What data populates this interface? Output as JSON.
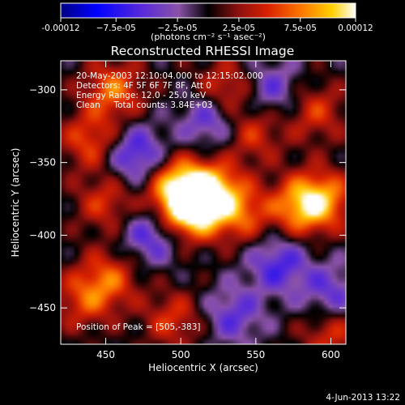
{
  "chart_data": {
    "type": "heatmap",
    "title": "Reconstructed RHESSI Image",
    "xlabel": "Heliocentric X (arcsec)",
    "ylabel": "Heliocentric Y (arcsec)",
    "xlim": [
      420,
      610
    ],
    "ylim": [
      -475,
      -280
    ],
    "x_ticks": [
      450,
      500,
      550,
      600
    ],
    "y_ticks": [
      -300,
      -350,
      -400,
      -450
    ],
    "x_tick_labels": [
      "450",
      "500",
      "550",
      "600"
    ],
    "y_tick_labels": [
      "−300",
      "−350",
      "−400",
      "−450"
    ],
    "colorbar": {
      "min": -0.00012,
      "max": 0.00012,
      "tick_labels": [
        "-0.00012",
        "−7.5e-05",
        "−2.5e-05",
        "2.5e-05",
        "7.5e-05",
        "0.00012"
      ],
      "tick_values": [
        -0.00012,
        -7.5e-05,
        -2.5e-05,
        2.5e-05,
        7.5e-05,
        0.00012
      ],
      "unit_label": "(photons cm⁻² s⁻¹ asec⁻²)",
      "colormap": [
        "#000080",
        "#0000ff",
        "#5a2bd8",
        "#8a52a8",
        "#000000",
        "#8a1010",
        "#d82000",
        "#ff7a00",
        "#ffd000",
        "#ffffff"
      ]
    },
    "annotations": [
      "20-May-2003 12:10:04.000 to 12:15:02.000",
      "Detectors: 4F 5F 6F 7F 8F, Att 0",
      "Energy Range: 12.0 - 25.0 keV",
      "Clean     Total counts: 3.84E+03"
    ],
    "peak_label": "Position of Peak = [505,-383]",
    "peak_position": [
      505,
      -383
    ],
    "features": [
      {
        "x": 505,
        "y": -383,
        "value": 0.00012
      },
      {
        "x": 520,
        "y": -370,
        "value": 0.0001
      },
      {
        "x": 497,
        "y": -365,
        "value": 8e-05
      },
      {
        "x": 580,
        "y": -380,
        "value": 8e-05
      },
      {
        "x": 595,
        "y": -375,
        "value": 7e-05
      },
      {
        "x": 540,
        "y": -385,
        "value": 6e-05
      },
      {
        "x": 455,
        "y": -300,
        "value": 7e-05
      },
      {
        "x": 440,
        "y": -335,
        "value": 6e-05
      },
      {
        "x": 450,
        "y": -378,
        "value": 5e-05
      },
      {
        "x": 452,
        "y": -430,
        "value": 6e-05
      },
      {
        "x": 435,
        "y": -445,
        "value": 5e-05
      },
      {
        "x": 495,
        "y": -458,
        "value": 5e-05
      },
      {
        "x": 530,
        "y": -300,
        "value": 6e-05
      },
      {
        "x": 548,
        "y": -330,
        "value": 5e-05
      },
      {
        "x": 590,
        "y": -315,
        "value": 5e-05
      },
      {
        "x": 600,
        "y": -468,
        "value": 5e-05
      },
      {
        "x": 470,
        "y": -345,
        "value": -7e-05
      },
      {
        "x": 520,
        "y": -320,
        "value": -6e-05
      },
      {
        "x": 480,
        "y": -400,
        "value": -6e-05
      },
      {
        "x": 560,
        "y": -300,
        "value": -5e-05
      },
      {
        "x": 565,
        "y": -420,
        "value": -6e-05
      },
      {
        "x": 600,
        "y": -440,
        "value": -5e-05
      },
      {
        "x": 535,
        "y": -455,
        "value": -5e-05
      }
    ]
  },
  "timestamp": "4-Jun-2013 13:22"
}
